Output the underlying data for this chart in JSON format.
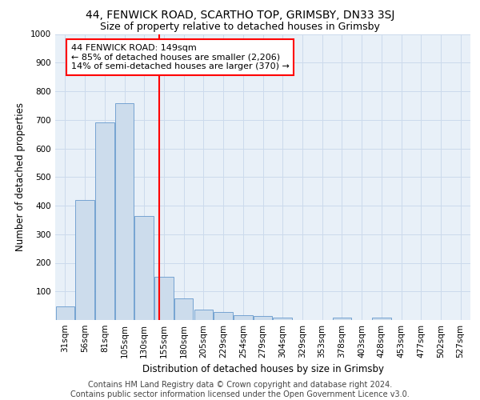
{
  "title1": "44, FENWICK ROAD, SCARTHO TOP, GRIMSBY, DN33 3SJ",
  "title2": "Size of property relative to detached houses in Grimsby",
  "xlabel": "Distribution of detached houses by size in Grimsby",
  "ylabel": "Number of detached properties",
  "categories": [
    "31sqm",
    "56sqm",
    "81sqm",
    "105sqm",
    "130sqm",
    "155sqm",
    "180sqm",
    "205sqm",
    "229sqm",
    "254sqm",
    "279sqm",
    "304sqm",
    "329sqm",
    "353sqm",
    "378sqm",
    "403sqm",
    "428sqm",
    "453sqm",
    "477sqm",
    "502sqm",
    "527sqm"
  ],
  "values": [
    47,
    420,
    690,
    757,
    363,
    152,
    75,
    37,
    27,
    18,
    14,
    7,
    0,
    0,
    9,
    0,
    9,
    0,
    0,
    0,
    0
  ],
  "bar_color": "#ccdcec",
  "bar_edge_color": "#6699cc",
  "vline_color": "red",
  "annotation_text": "44 FENWICK ROAD: 149sqm\n← 85% of detached houses are smaller (2,206)\n14% of semi-detached houses are larger (370) →",
  "annotation_box_color": "white",
  "annotation_box_edge_color": "red",
  "grid_color": "#ccdaec",
  "background_color": "#e8f0f8",
  "ylim": [
    0,
    1000
  ],
  "yticks": [
    0,
    100,
    200,
    300,
    400,
    500,
    600,
    700,
    800,
    900,
    1000
  ],
  "footer_text": "Contains HM Land Registry data © Crown copyright and database right 2024.\nContains public sector information licensed under the Open Government Licence v3.0.",
  "title1_fontsize": 10,
  "title2_fontsize": 9,
  "annotation_fontsize": 8,
  "tick_fontsize": 7.5,
  "ylabel_fontsize": 8.5,
  "xlabel_fontsize": 8.5,
  "footer_fontsize": 7
}
